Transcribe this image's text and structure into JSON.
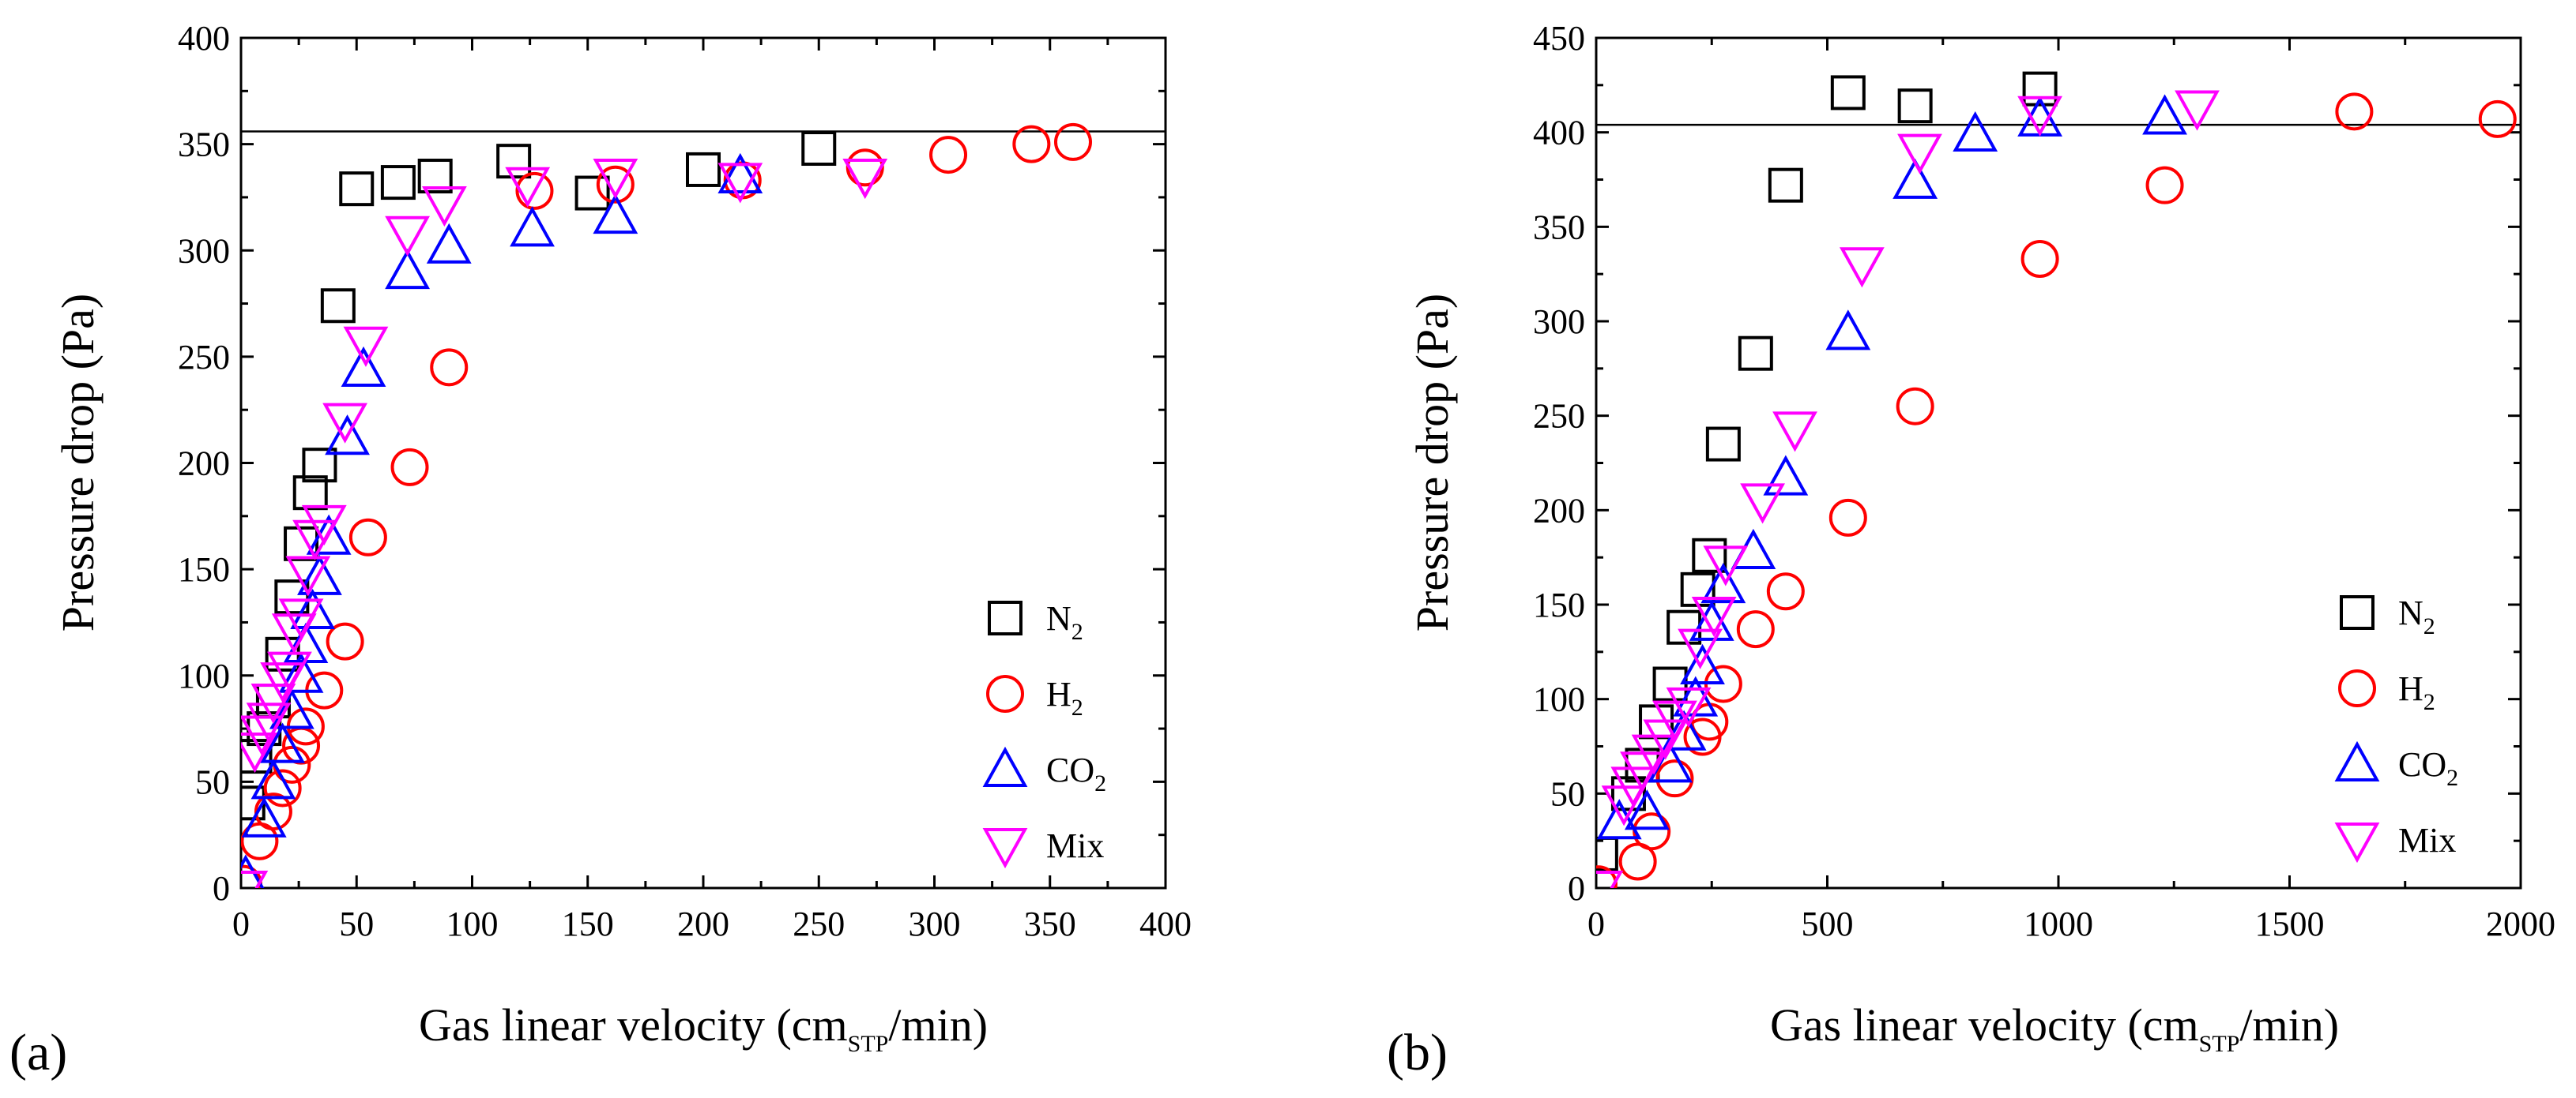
{
  "figure": {
    "panels": [
      {
        "label": "(a)"
      },
      {
        "label": "(b)"
      }
    ]
  },
  "chart_data": [
    {
      "type": "scatter",
      "panel": "(a)",
      "xlabel": {
        "main": "Gas linear velocity (cm",
        "sub": "STP",
        "tail": "/min)"
      },
      "ylabel": "Pressure drop (Pa)",
      "xlim": [
        0,
        400
      ],
      "ylim": [
        0,
        400
      ],
      "xticks": [
        0,
        50,
        100,
        150,
        200,
        250,
        300,
        350,
        400
      ],
      "yticks": [
        0,
        50,
        100,
        150,
        200,
        250,
        300,
        350,
        400
      ],
      "reference_line_y": 356,
      "legend_position": "bottom-right",
      "series": [
        {
          "key": "n2",
          "name": "N",
          "sub": "2",
          "marker": "square",
          "color": "#000000",
          "points": [
            [
              3,
              40
            ],
            [
              6,
              62
            ],
            [
              10,
              75
            ],
            [
              14,
              88
            ],
            [
              18,
              110
            ],
            [
              22,
              137
            ],
            [
              26,
              162
            ],
            [
              30,
              186
            ],
            [
              34,
              199
            ],
            [
              42,
              274
            ],
            [
              50,
              329
            ],
            [
              68,
              332
            ],
            [
              84,
              335
            ],
            [
              118,
              342
            ],
            [
              152,
              327
            ],
            [
              200,
              338
            ],
            [
              250,
              348
            ]
          ]
        },
        {
          "key": "h2",
          "name": "H",
          "sub": "2",
          "marker": "circle",
          "color": "#ff0000",
          "points": [
            [
              1,
              2
            ],
            [
              8,
              22
            ],
            [
              14,
              36
            ],
            [
              18,
              47
            ],
            [
              22,
              58
            ],
            [
              26,
              67
            ],
            [
              28,
              76
            ],
            [
              36,
              93
            ],
            [
              45,
              116
            ],
            [
              55,
              165
            ],
            [
              73,
              198
            ],
            [
              90,
              245
            ],
            [
              127,
              328
            ],
            [
              162,
              331
            ],
            [
              217,
              333
            ],
            [
              270,
              339
            ],
            [
              306,
              345
            ],
            [
              342,
              350
            ],
            [
              360,
              351
            ]
          ]
        },
        {
          "key": "co2",
          "name": "CO",
          "sub": "2",
          "marker": "triangle-up",
          "color": "#0000ff",
          "points": [
            [
              2,
              5
            ],
            [
              10,
              32
            ],
            [
              14,
              50
            ],
            [
              18,
              67
            ],
            [
              22,
              83
            ],
            [
              26,
              100
            ],
            [
              28,
              114
            ],
            [
              31,
              130
            ],
            [
              34,
              146
            ],
            [
              38,
              165
            ],
            [
              46,
              212
            ],
            [
              53,
              244
            ],
            [
              72,
              290
            ],
            [
              90,
              302
            ],
            [
              126,
              310
            ],
            [
              162,
              316
            ],
            [
              216,
              335
            ]
          ]
        },
        {
          "key": "mix",
          "name": "Mix",
          "sub": "",
          "marker": "triangle-down",
          "color": "#ff00ff",
          "points": [
            [
              2,
              0
            ],
            [
              6,
              65
            ],
            [
              9,
              73
            ],
            [
              12,
              79
            ],
            [
              14,
              88
            ],
            [
              18,
              98
            ],
            [
              21,
              103
            ],
            [
              23,
              121
            ],
            [
              26,
              128
            ],
            [
              29,
              148
            ],
            [
              32,
              165
            ],
            [
              36,
              172
            ],
            [
              45,
              220
            ],
            [
              54,
              256
            ],
            [
              72,
              308
            ],
            [
              88,
              322
            ],
            [
              124,
              331
            ],
            [
              162,
              335
            ],
            [
              216,
              333
            ],
            [
              270,
              335
            ]
          ]
        }
      ]
    },
    {
      "type": "scatter",
      "panel": "(b)",
      "xlabel": {
        "main": "Gas linear velocity (cm",
        "sub": "STP",
        "tail": "/min)"
      },
      "ylabel": "Pressure drop (Pa)",
      "xlim": [
        0,
        2000
      ],
      "ylim": [
        0,
        450
      ],
      "xticks": [
        0,
        500,
        1000,
        1500,
        2000
      ],
      "yticks": [
        0,
        50,
        100,
        150,
        200,
        250,
        300,
        350,
        400,
        450
      ],
      "reference_line_y": 404,
      "legend_position": "bottom-right",
      "series": [
        {
          "key": "n2",
          "name": "N",
          "sub": "2",
          "marker": "square",
          "color": "#000000",
          "points": [
            [
              10,
              18
            ],
            [
              70,
              50
            ],
            [
              100,
              65
            ],
            [
              130,
              88
            ],
            [
              160,
              108
            ],
            [
              190,
              138
            ],
            [
              220,
              158
            ],
            [
              245,
              176
            ],
            [
              275,
              235
            ],
            [
              345,
              283
            ],
            [
              410,
              372
            ],
            [
              545,
              421
            ],
            [
              690,
              414
            ],
            [
              960,
              423
            ]
          ]
        },
        {
          "key": "h2",
          "name": "H",
          "sub": "2",
          "marker": "circle",
          "color": "#ff0000",
          "points": [
            [
              5,
              2
            ],
            [
              90,
              14
            ],
            [
              120,
              30
            ],
            [
              170,
              58
            ],
            [
              230,
              80
            ],
            [
              245,
              88
            ],
            [
              275,
              108
            ],
            [
              345,
              137
            ],
            [
              410,
              157
            ],
            [
              545,
              196
            ],
            [
              690,
              255
            ],
            [
              960,
              333
            ],
            [
              1230,
              372
            ],
            [
              1640,
              411
            ],
            [
              1950,
              407
            ]
          ]
        },
        {
          "key": "co2",
          "name": "CO",
          "sub": "2",
          "marker": "triangle-up",
          "color": "#0000ff",
          "points": [
            [
              50,
              35
            ],
            [
              110,
              40
            ],
            [
              160,
              65
            ],
            [
              190,
              82
            ],
            [
              215,
              100
            ],
            [
              230,
              117
            ],
            [
              250,
              140
            ],
            [
              275,
              160
            ],
            [
              340,
              178
            ],
            [
              410,
              217
            ],
            [
              545,
              294
            ],
            [
              690,
              374
            ],
            [
              820,
              399
            ],
            [
              960,
              407
            ],
            [
              1230,
              408
            ]
          ]
        },
        {
          "key": "mix",
          "name": "Mix",
          "sub": "",
          "marker": "triangle-down",
          "color": "#ff00ff",
          "points": [
            [
              10,
              0
            ],
            [
              60,
              45
            ],
            [
              80,
              55
            ],
            [
              100,
              63
            ],
            [
              125,
              72
            ],
            [
              150,
              80
            ],
            [
              170,
              90
            ],
            [
              200,
              97
            ],
            [
              225,
              128
            ],
            [
              255,
              145
            ],
            [
              280,
              172
            ],
            [
              360,
              205
            ],
            [
              430,
              243
            ],
            [
              575,
              330
            ],
            [
              700,
              390
            ],
            [
              960,
              410
            ],
            [
              1300,
              413
            ]
          ]
        }
      ]
    }
  ]
}
